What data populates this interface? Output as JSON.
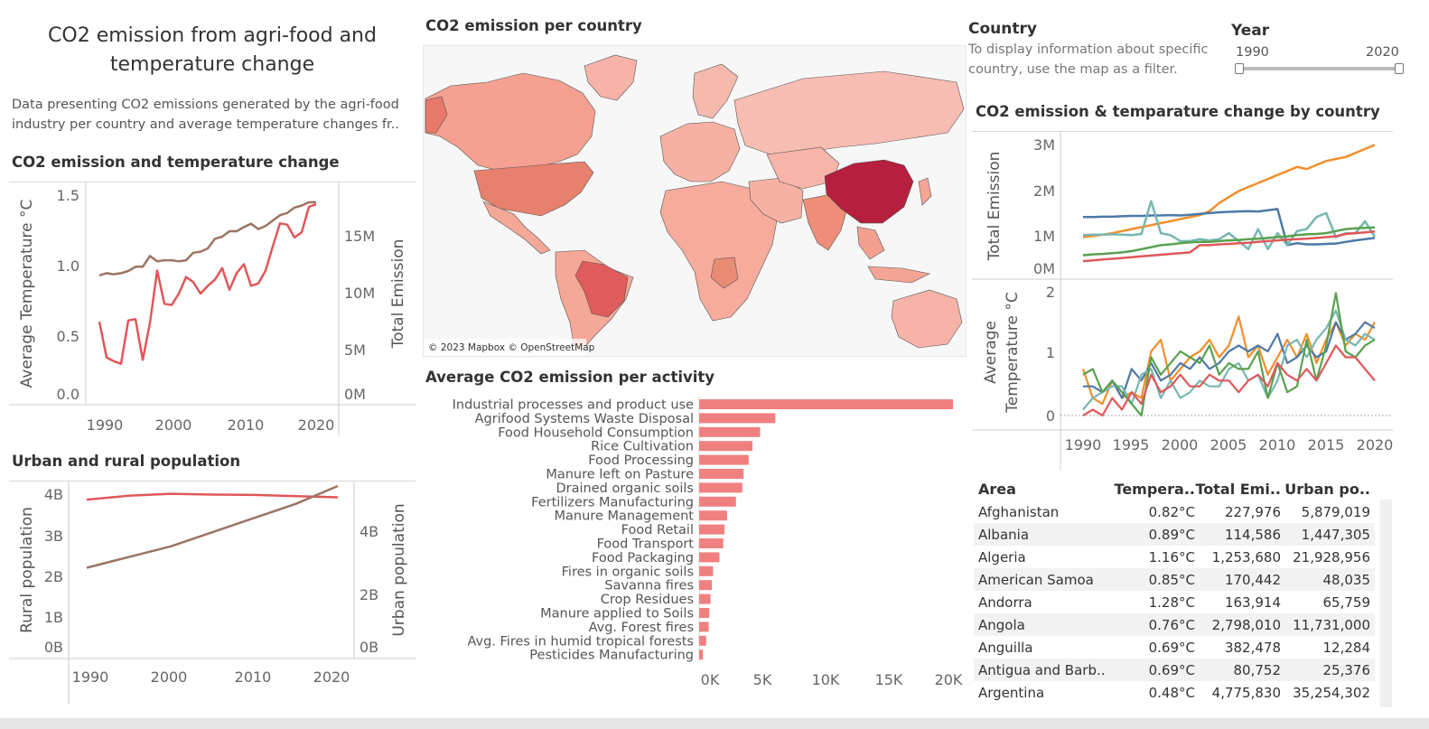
{
  "header": {
    "title": "CO2 emission from agri-food and temperature change",
    "description": "Data presenting CO2 emissions generated by the agri-food industry per country and average temperature changes fr.."
  },
  "colors": {
    "red": "#e05759",
    "brown": "#9c7462",
    "orange": "#f28e2b",
    "blue": "#4e79a7",
    "teal": "#76b7b2",
    "green": "#59a14f",
    "bar": "#f08080",
    "china": "#b61f3d"
  },
  "panels": {
    "emission_temp": {
      "title": "CO2  emission and temperature change",
      "y_left_label": "Average Temperature °C",
      "y_right_label": "Total Emission",
      "left_ticks": [
        "1.5",
        "1.0",
        "0.5",
        "0.0"
      ],
      "right_ticks": [
        "15M",
        "10M",
        "5M",
        "0M"
      ],
      "x_ticks": [
        "1990",
        "2000",
        "2010",
        "2020"
      ]
    },
    "population": {
      "title": "Urban and rural population",
      "y_left_label": "Rural population",
      "y_right_label": "Urban population",
      "left_ticks": [
        "4B",
        "3B",
        "2B",
        "1B",
        "0B"
      ],
      "right_ticks": [
        "4B",
        "2B",
        "0B"
      ],
      "x_ticks": [
        "1990",
        "2000",
        "2010",
        "2020"
      ]
    },
    "map": {
      "title": "CO2 emission per country",
      "attribution": "© 2023 Mapbox © OpenStreetMap"
    },
    "activity": {
      "title": "Average CO2 emission per activity",
      "x_ticks": [
        "0K",
        "5K",
        "10K",
        "15K",
        "20K"
      ]
    },
    "country_filter": {
      "title": "Country",
      "description_line1": "To display information about specific",
      "description_line2": "country, use the map as a filter."
    },
    "year_filter": {
      "title": "Year",
      "min": "1990",
      "max": "2020"
    },
    "by_country": {
      "title": "CO2 emission & temparature change by country",
      "top_y_label": "Total Emission",
      "bottom_y_label_line1": "Average",
      "bottom_y_label_line2": "Temperature °C",
      "top_ticks": [
        "3M",
        "2M",
        "1M",
        "0M"
      ],
      "bottom_ticks": [
        "2",
        "1",
        "0"
      ],
      "x_ticks": [
        "1990",
        "1995",
        "2000",
        "2005",
        "2010",
        "2015",
        "2020"
      ]
    }
  },
  "chart_data": [
    {
      "type": "line",
      "title": "CO2  emission and temperature change",
      "x": [
        1990,
        1991,
        1992,
        1993,
        1994,
        1995,
        1996,
        1997,
        1998,
        1999,
        2000,
        2001,
        2002,
        2003,
        2004,
        2005,
        2006,
        2007,
        2008,
        2009,
        2010,
        2011,
        2012,
        2013,
        2014,
        2015,
        2016,
        2017,
        2018,
        2019,
        2020
      ],
      "series": [
        {
          "name": "Average Temperature °C",
          "axis": "left",
          "values": [
            0.58,
            0.3,
            0.27,
            0.25,
            0.59,
            0.6,
            0.28,
            0.57,
            0.98,
            0.72,
            0.71,
            0.8,
            0.93,
            0.89,
            0.8,
            0.86,
            0.91,
            1.0,
            0.83,
            0.96,
            1.03,
            0.86,
            0.88,
            0.98,
            1.17,
            1.35,
            1.34,
            1.24,
            1.28,
            1.48,
            1.5
          ]
        },
        {
          "name": "Total Emission",
          "axis": "right",
          "values": [
            11.2,
            11.4,
            11.3,
            11.4,
            11.6,
            12.0,
            12.0,
            13.0,
            12.5,
            12.6,
            12.6,
            12.5,
            12.6,
            13.3,
            13.4,
            13.7,
            14.6,
            14.8,
            15.3,
            15.3,
            15.7,
            16.0,
            15.5,
            15.8,
            16.3,
            16.8,
            17.0,
            17.5,
            17.7,
            18.0,
            18.0
          ]
        }
      ],
      "ylim_left": [
        0,
        1.6
      ],
      "ylim_right": [
        0,
        19
      ]
    },
    {
      "type": "line",
      "title": "Urban and rural population",
      "x": [
        1990,
        1995,
        2000,
        2005,
        2010,
        2015,
        2020
      ],
      "series": [
        {
          "name": "Rural population",
          "axis": "left",
          "values": [
            3.85,
            3.95,
            4.0,
            3.98,
            3.97,
            3.94,
            3.91
          ]
        },
        {
          "name": "Urban population",
          "axis": "right",
          "values": [
            2.3,
            2.6,
            2.9,
            3.3,
            3.7,
            4.1,
            4.6
          ]
        }
      ],
      "ylim_left": [
        0,
        4.2
      ],
      "ylim_right": [
        0,
        4.6
      ]
    },
    {
      "type": "bar",
      "title": "Average CO2 emission per activity",
      "categories": [
        "Industrial processes and product use",
        "Agrifood Systems Waste Disposal",
        "Food Household Consumption",
        "Rice Cultivation",
        "Food Processing",
        "Manure left on Pasture",
        "Drained organic soils",
        "Fertilizers Manufacturing",
        "Manure Management",
        "Food Retail",
        "Food Transport",
        "Food Packaging",
        "Fires in organic soils",
        "Savanna fires",
        "Crop Residues",
        "Manure applied to Soils",
        "Avg. Forest fires",
        "Avg. Fires in humid tropical forests",
        "Pesticides Manufacturing"
      ],
      "values": [
        20000,
        6000,
        4800,
        4200,
        3900,
        3500,
        3400,
        2900,
        2200,
        2000,
        1900,
        1600,
        1100,
        1000,
        900,
        800,
        750,
        550,
        300
      ],
      "xlim": [
        0,
        20000
      ]
    },
    {
      "type": "line",
      "title": "CO2 emission & temparature change by country",
      "x": [
        1990,
        1991,
        1992,
        1993,
        1994,
        1995,
        1996,
        1997,
        1998,
        1999,
        2000,
        2001,
        2002,
        2003,
        2004,
        2005,
        2006,
        2007,
        2008,
        2009,
        2010,
        2011,
        2012,
        2013,
        2014,
        2015,
        2016,
        2017,
        2018,
        2019,
        2020
      ],
      "top_series": [
        {
          "color": "orange",
          "values": [
            0.8,
            0.83,
            0.86,
            0.9,
            0.95,
            1.0,
            1.05,
            1.1,
            1.15,
            1.2,
            1.25,
            1.3,
            1.35,
            1.45,
            1.65,
            1.8,
            1.95,
            2.05,
            2.15,
            2.25,
            2.35,
            2.45,
            2.55,
            2.5,
            2.6,
            2.7,
            2.75,
            2.8,
            2.9,
            3.0,
            3.1
          ]
        },
        {
          "color": "blue",
          "values": [
            1.3,
            1.3,
            1.31,
            1.31,
            1.32,
            1.33,
            1.33,
            1.34,
            1.34,
            1.35,
            1.34,
            1.36,
            1.38,
            1.4,
            1.42,
            1.43,
            1.44,
            1.45,
            1.44,
            1.47,
            1.5,
            0.6,
            0.65,
            0.62,
            0.62,
            0.63,
            0.64,
            0.68,
            0.72,
            0.75,
            0.78
          ]
        },
        {
          "color": "teal",
          "values": [
            0.85,
            0.86,
            0.86,
            0.87,
            0.86,
            0.85,
            0.88,
            1.7,
            0.9,
            0.85,
            0.7,
            0.7,
            0.75,
            0.72,
            0.75,
            0.9,
            0.7,
            0.5,
            1.0,
            0.5,
            0.9,
            0.6,
            0.95,
            1.0,
            1.3,
            1.4,
            0.8,
            0.9,
            0.9,
            1.2,
            0.8
          ]
        },
        {
          "color": "green",
          "values": [
            0.35,
            0.37,
            0.38,
            0.4,
            0.42,
            0.45,
            0.5,
            0.55,
            0.6,
            0.62,
            0.65,
            0.67,
            0.68,
            0.68,
            0.7,
            0.72,
            0.73,
            0.75,
            0.76,
            0.78,
            0.8,
            0.82,
            0.85,
            0.87,
            0.88,
            0.9,
            0.95,
            1.0,
            1.02,
            1.03,
            1.04
          ]
        },
        {
          "color": "red",
          "values": [
            0.2,
            0.22,
            0.24,
            0.26,
            0.28,
            0.3,
            0.32,
            0.34,
            0.36,
            0.38,
            0.4,
            0.42,
            0.6,
            0.6,
            0.62,
            0.63,
            0.65,
            0.66,
            0.68,
            0.7,
            0.72,
            0.74,
            0.75,
            0.76,
            0.78,
            0.8,
            0.82,
            0.88,
            0.9,
            0.92,
            0.94
          ]
        }
      ],
      "bottom_series": [
        {
          "color": "orange",
          "values": [
            0.8,
            0.3,
            0.2,
            0.6,
            0.3,
            0.4,
            0.3,
            1.1,
            1.3,
            0.6,
            0.8,
            1.0,
            1.1,
            1.3,
            1.0,
            1.2,
            1.7,
            1.0,
            1.2,
            0.7,
            1.0,
            1.3,
            1.0,
            1.4,
            0.9,
            1.3,
            1.6,
            1.2,
            1.4,
            1.3,
            1.6
          ]
        },
        {
          "color": "blue",
          "values": [
            0.5,
            0.5,
            0.4,
            0.6,
            0.3,
            0.8,
            0.6,
            0.9,
            0.6,
            0.7,
            0.9,
            0.8,
            1.0,
            0.8,
            0.9,
            1.1,
            1.2,
            1.1,
            1.2,
            1.1,
            1.4,
            0.9,
            1.0,
            1.2,
            1.0,
            1.1,
            1.6,
            1.3,
            1.4,
            1.6,
            1.5
          ]
        },
        {
          "color": "teal",
          "values": [
            0.1,
            0.3,
            0.4,
            0.5,
            0.5,
            0.2,
            0.7,
            0.8,
            0.3,
            0.6,
            0.3,
            0.4,
            0.6,
            0.5,
            0.5,
            0.8,
            0.9,
            0.6,
            0.7,
            0.3,
            0.6,
            1.2,
            1.3,
            1.0,
            1.3,
            1.5,
            1.8,
            1.3,
            1.2,
            1.4,
            1.3
          ]
        },
        {
          "color": "green",
          "values": [
            0.7,
            0.8,
            0.4,
            0.6,
            0.4,
            0.2,
            0.0,
            1.0,
            0.7,
            0.9,
            1.1,
            1.0,
            0.9,
            1.2,
            0.7,
            0.9,
            0.8,
            0.8,
            1.1,
            0.3,
            0.9,
            0.4,
            0.5,
            1.3,
            0.6,
            1.2,
            2.1,
            1.1,
            1.0,
            1.2,
            1.3
          ]
        },
        {
          "color": "red",
          "values": [
            0.0,
            0.1,
            0.0,
            0.3,
            0.1,
            0.4,
            0.2,
            0.7,
            0.4,
            0.5,
            0.7,
            0.5,
            0.5,
            0.7,
            0.6,
            0.6,
            0.4,
            0.6,
            0.7,
            0.5,
            0.9,
            0.7,
            0.6,
            0.8,
            0.6,
            0.9,
            1.2,
            1.0,
            1.0,
            0.8,
            0.6
          ]
        }
      ],
      "top_ylim": [
        0,
        3.2
      ],
      "bottom_ylim": [
        0,
        2.2
      ]
    }
  ],
  "table": {
    "headers": [
      "Area",
      "Tempera..",
      "Total Emi..",
      "Urban po.."
    ],
    "rows": [
      [
        "Afghanistan",
        "0.82°C",
        "227,976",
        "5,879,019"
      ],
      [
        "Albania",
        "0.89°C",
        "114,586",
        "1,447,305"
      ],
      [
        "Algeria",
        "1.16°C",
        "1,253,680",
        "21,928,956"
      ],
      [
        "American Samoa",
        "0.85°C",
        "170,442",
        "48,035"
      ],
      [
        "Andorra",
        "1.28°C",
        "163,914",
        "65,759"
      ],
      [
        "Angola",
        "0.76°C",
        "2,798,010",
        "11,731,000"
      ],
      [
        "Anguilla",
        "0.69°C",
        "382,478",
        "12,284"
      ],
      [
        "Antigua and Barb..",
        "0.69°C",
        "80,752",
        "25,376"
      ],
      [
        "Argentina",
        "0.48°C",
        "4,775,830",
        "35,254,302"
      ]
    ]
  }
}
